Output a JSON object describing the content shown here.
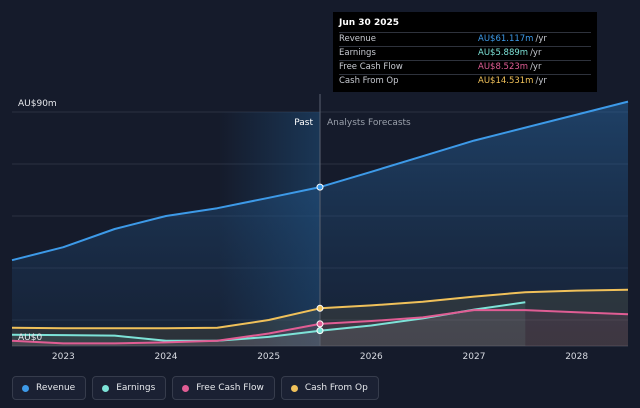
{
  "chart_data": {
    "type": "line",
    "x_axis_ticks": [
      "2023",
      "2024",
      "2025",
      "2026",
      "2027",
      "2028"
    ],
    "y_axis_labels": [
      "AU$90m",
      "AU$0"
    ],
    "ylim": [
      0,
      90
    ],
    "xlim": [
      2022.5,
      2028.5
    ],
    "grid": true,
    "split_x": 2025.5,
    "region_labels": {
      "past": "Past",
      "forecast": "Analysts Forecasts"
    },
    "series": [
      {
        "name": "Revenue",
        "color": "#3d9ae8",
        "unit": "/yr",
        "values": [
          [
            2022.5,
            33
          ],
          [
            2023,
            38
          ],
          [
            2023.5,
            45
          ],
          [
            2024,
            50
          ],
          [
            2024.5,
            53
          ],
          [
            2025,
            57
          ],
          [
            2025.5,
            61.1
          ],
          [
            2026,
            67
          ],
          [
            2026.5,
            73
          ],
          [
            2027,
            79
          ],
          [
            2027.5,
            84
          ],
          [
            2028,
            89
          ],
          [
            2028.5,
            94
          ]
        ]
      },
      {
        "name": "Earnings",
        "color": "#7de3d8",
        "unit": "/yr",
        "values": [
          [
            2022.5,
            4.3
          ],
          [
            2023,
            4.2
          ],
          [
            2023.5,
            4
          ],
          [
            2024,
            2
          ],
          [
            2024.5,
            2
          ],
          [
            2025,
            3.5
          ],
          [
            2025.5,
            5.9
          ],
          [
            2026,
            7.9
          ],
          [
            2026.5,
            10.6
          ],
          [
            2027,
            14
          ],
          [
            2027.5,
            16.8
          ]
        ]
      },
      {
        "name": "Free Cash Flow",
        "color": "#e05d94",
        "unit": "/yr",
        "values": [
          [
            2022.5,
            2
          ],
          [
            2023,
            1
          ],
          [
            2023.5,
            1
          ],
          [
            2024,
            1.4
          ],
          [
            2024.5,
            2
          ],
          [
            2025,
            4.8
          ],
          [
            2025.5,
            8.5
          ],
          [
            2026,
            9.6
          ],
          [
            2026.5,
            11
          ],
          [
            2027,
            13.8
          ],
          [
            2027.5,
            13.8
          ],
          [
            2028,
            13
          ],
          [
            2028.5,
            12.2
          ]
        ]
      },
      {
        "name": "Cash From Op",
        "color": "#f0c15a",
        "unit": "/yr",
        "values": [
          [
            2022.5,
            7
          ],
          [
            2023,
            6.8
          ],
          [
            2023.5,
            6.8
          ],
          [
            2024,
            6.8
          ],
          [
            2024.5,
            7
          ],
          [
            2025,
            10
          ],
          [
            2025.5,
            14.5
          ],
          [
            2026,
            15.6
          ],
          [
            2026.5,
            17
          ],
          [
            2027,
            19
          ],
          [
            2027.5,
            20.7
          ],
          [
            2028,
            21.3
          ],
          [
            2028.5,
            21.6
          ]
        ]
      }
    ],
    "tooltip": {
      "title": "Jun 30 2025",
      "rows": [
        {
          "name": "Revenue",
          "value": "AU$61.117m",
          "unit": "/yr",
          "color": "#3d9ae8"
        },
        {
          "name": "Earnings",
          "value": "AU$5.889m",
          "unit": "/yr",
          "color": "#7de3d8"
        },
        {
          "name": "Free Cash Flow",
          "value": "AU$8.523m",
          "unit": "/yr",
          "color": "#e05d94"
        },
        {
          "name": "Cash From Op",
          "value": "AU$14.531m",
          "unit": "/yr",
          "color": "#f0c15a"
        }
      ]
    }
  },
  "legend": [
    {
      "label": "Revenue",
      "color": "#3d9ae8"
    },
    {
      "label": "Earnings",
      "color": "#7de3d8"
    },
    {
      "label": "Free Cash Flow",
      "color": "#e05d94"
    },
    {
      "label": "Cash From Op",
      "color": "#f0c15a"
    }
  ]
}
